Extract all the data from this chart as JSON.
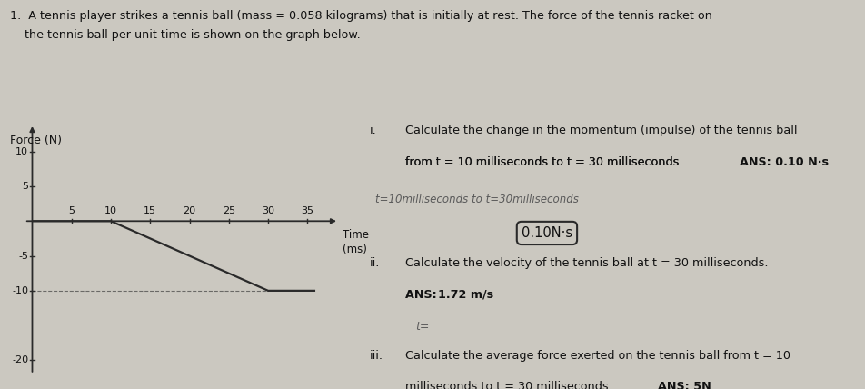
{
  "header_line1": "1.  A tennis player strikes a tennis ball (mass = 0.058 kilograms) that is initially at rest. The force of the tennis racket on",
  "header_line2": "    the tennis ball per unit time is shown on the graph below.",
  "ylabel": "Force (N)",
  "xlabel_word": "Time",
  "xlabel_unit": "(ms)",
  "x_ticks": [
    5,
    10,
    15,
    20,
    25,
    30,
    35
  ],
  "y_ticks": [
    -20,
    -10,
    -5,
    5,
    10
  ],
  "xlim": [
    0,
    40
  ],
  "ylim": [
    -23,
    14
  ],
  "graph_line_x": [
    0,
    10,
    30,
    36
  ],
  "graph_line_y": [
    0,
    0,
    -10,
    -10
  ],
  "bg_color": "#cbc8c0",
  "line_color": "#2a2a2a",
  "text_color": "#111111",
  "dashed_line_x": [
    30,
    30
  ],
  "dashed_line_y": [
    -10,
    0
  ],
  "q1_num": "i.",
  "q1_line1": "Calculate the change in the momentum (impulse) of the tennis ball",
  "q1_line2": "from t = 10 milliseconds to t = 30 milliseconds. ANS: 0.10 N·s",
  "q1_ans_bold": "ANS: 0.10 N·s",
  "q1_hw1": "t=10milliseconds to t=30milliseconds",
  "q1_hw2": "0.10N·s",
  "q2_num": "ii.",
  "q2_line1": "Calculate the velocity of the tennis ball at t = 30 milliseconds.",
  "q2_line2": "ANS: 1.72 m/s",
  "q2_hw": "t=",
  "q3_num": "iii.",
  "q3_line1": "Calculate the average force exerted on the tennis ball from t = 10",
  "q3_line2": "milliseconds to t = 30 milliseconds. ANS: 5N",
  "fontsize_header": 9.2,
  "fontsize_q": 9.2,
  "fontsize_tick": 8.0,
  "fontsize_axlabel": 9.0
}
